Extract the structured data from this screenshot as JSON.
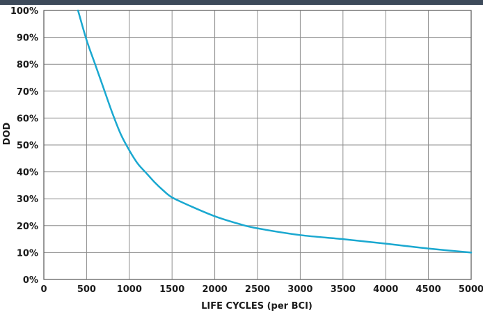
{
  "chart_data": {
    "type": "line",
    "xlabel": "LIFE CYCLES (per BCI)",
    "ylabel": "DOD",
    "xlim": [
      0,
      5000
    ],
    "ylim": [
      0,
      100
    ],
    "x_ticks": [
      "0",
      "500",
      "1000",
      "1500",
      "2000",
      "2500",
      "3000",
      "3500",
      "4000",
      "4500",
      "5000"
    ],
    "y_ticks": [
      "0%",
      "10%",
      "20%",
      "30%",
      "40%",
      "50%",
      "60%",
      "70%",
      "80%",
      "90%",
      "100%"
    ],
    "grid": true,
    "colors": {
      "line": "#1aa8d0",
      "grid": "#8c8c8c",
      "header": "#3d4a5a"
    },
    "series": [
      {
        "x": [
          400,
          500,
          600,
          700,
          800,
          900,
          1000,
          1100,
          1200,
          1300,
          1400,
          1500,
          1700,
          2000,
          2300,
          2500,
          3000,
          3500,
          4000,
          4500,
          5000
        ],
        "y": [
          100,
          89,
          80,
          71,
          62,
          54,
          48,
          43,
          39.5,
          36,
          33,
          30.5,
          27.5,
          23.5,
          20.5,
          19,
          16.5,
          15,
          13.3,
          11.5,
          10
        ]
      }
    ]
  }
}
